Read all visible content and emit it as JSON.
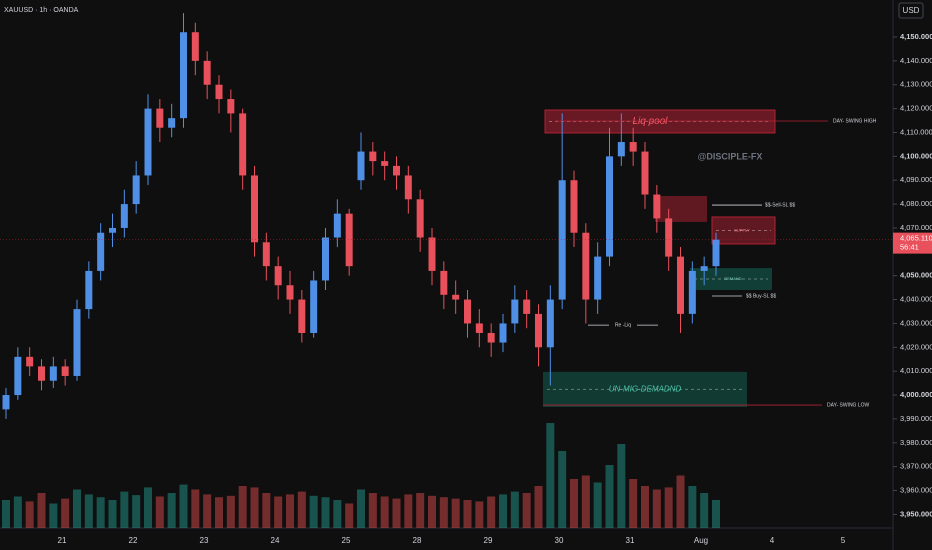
{
  "chart_data": {
    "type": "candlestick",
    "title": "XAUUSD · 1h · OANDA",
    "currency": "USD",
    "watermark": "@DISCIPLE-FX",
    "up_color": "#4f8fe6",
    "down_color": "#e8505b",
    "ylim": [
      3944.3,
      4165.5
    ],
    "yticks": [
      {
        "value": 4150,
        "label": "4,150.000"
      },
      {
        "value": 4140,
        "label": "4,140.000"
      },
      {
        "value": 4130,
        "label": "4,130.000"
      },
      {
        "value": 4120,
        "label": "4,120.000"
      },
      {
        "value": 4110,
        "label": "4,110.000"
      },
      {
        "value": 4100,
        "label": "4,100.000"
      },
      {
        "value": 4090,
        "label": "4,090.000"
      },
      {
        "value": 4080,
        "label": "4,080.000"
      },
      {
        "value": 4070,
        "label": "4,070.000"
      },
      {
        "value": 4050,
        "label": "4,050.000"
      },
      {
        "value": 4040,
        "label": "4,040.000"
      },
      {
        "value": 4030,
        "label": "4,030.000"
      },
      {
        "value": 4020,
        "label": "4,020.000"
      },
      {
        "value": 4010,
        "label": "4,010.000"
      },
      {
        "value": 4000,
        "label": "4,000.000"
      },
      {
        "value": 3990,
        "label": "3,990.000"
      },
      {
        "value": 3980,
        "label": "3,980.000"
      },
      {
        "value": 3970,
        "label": "3,970.000"
      },
      {
        "value": 3960,
        "label": "3,960.000"
      },
      {
        "value": 3950,
        "label": "3,950.000"
      }
    ],
    "x_tick_labels": [
      "21",
      "22",
      "23",
      "24",
      "25",
      "28",
      "29",
      "30",
      "31",
      "Aug",
      "4",
      "5"
    ],
    "candles": {
      "open": [
        3994,
        4000,
        4016,
        4012,
        4006,
        4012,
        4008,
        4036,
        4052,
        4068,
        4070,
        4080,
        4092,
        4120,
        4112,
        4116,
        4152,
        4140,
        4130,
        4124,
        4118,
        4092,
        4064,
        4054,
        4046,
        4040,
        4026,
        4048,
        4066,
        4076,
        4090,
        4102,
        4098,
        4096,
        4092,
        4082,
        4066,
        4052,
        4042,
        4040,
        4030,
        4026,
        4022,
        4030,
        4040,
        4034,
        4020,
        4040,
        4090,
        4068,
        4040,
        4058,
        4100,
        4106,
        4102,
        4084,
        4074,
        4058,
        4034,
        4052,
        4054
      ],
      "high": [
        4003,
        4020,
        4020,
        4015,
        4016,
        4015,
        4040,
        4056,
        4072,
        4076,
        4086,
        4098,
        4126,
        4124,
        4122,
        4160,
        4156,
        4144,
        4134,
        4128,
        4120,
        4096,
        4068,
        4058,
        4052,
        4044,
        4052,
        4070,
        4082,
        4078,
        4110,
        4106,
        4102,
        4100,
        4096,
        4086,
        4070,
        4056,
        4048,
        4044,
        4036,
        4030,
        4034,
        4046,
        4044,
        4038,
        4046,
        4118,
        4094,
        4072,
        4064,
        4112,
        4118,
        4112,
        4106,
        4088,
        4078,
        4062,
        4056,
        4058,
        4068
      ],
      "low": [
        3990,
        3998,
        4008,
        4002,
        4003,
        4004,
        4006,
        4032,
        4048,
        4062,
        4066,
        4076,
        4088,
        4106,
        4108,
        4112,
        4134,
        4124,
        4118,
        4110,
        4086,
        4058,
        4048,
        4040,
        4034,
        4022,
        4024,
        4044,
        4062,
        4050,
        4086,
        4092,
        4090,
        4086,
        4076,
        4060,
        4046,
        4036,
        4034,
        4024,
        4020,
        4016,
        4018,
        4026,
        4028,
        4012,
        4004,
        4036,
        4062,
        4030,
        4034,
        4054,
        4096,
        4096,
        4078,
        4068,
        4052,
        4026,
        4030,
        4046,
        4050
      ],
      "close": [
        4000,
        4016,
        4012,
        4006,
        4012,
        4008,
        4036,
        4052,
        4068,
        4070,
        4080,
        4092,
        4120,
        4112,
        4116,
        4152,
        4140,
        4130,
        4124,
        4118,
        4092,
        4064,
        4054,
        4046,
        4040,
        4026,
        4048,
        4066,
        4076,
        4054,
        4102,
        4098,
        4096,
        4092,
        4082,
        4066,
        4052,
        4042,
        4040,
        4030,
        4026,
        4022,
        4030,
        4040,
        4034,
        4020,
        4040,
        4090,
        4068,
        4040,
        4058,
        4100,
        4106,
        4102,
        4084,
        4074,
        4058,
        4034,
        4052,
        4054,
        4065.11
      ],
      "volume": [
        40,
        45,
        38,
        50,
        35,
        42,
        55,
        48,
        44,
        40,
        52,
        47,
        58,
        45,
        50,
        62,
        55,
        48,
        44,
        46,
        60,
        58,
        50,
        45,
        48,
        52,
        46,
        44,
        40,
        35,
        55,
        50,
        45,
        42,
        48,
        50,
        46,
        44,
        42,
        40,
        38,
        45,
        48,
        52,
        50,
        60,
        150,
        110,
        70,
        75,
        65,
        90,
        120,
        70,
        60,
        55,
        58,
        75,
        60,
        50,
        40
      ]
    },
    "last_price": 4065.11,
    "last_price_label": "4,065.110",
    "countdown": "56:41",
    "zones": [
      {
        "label": "Liq pool",
        "top": 4119.4,
        "bottom": 4109.8
      },
      {
        "top": 4083.4,
        "bottom": 4072.5
      },
      {
        "label": "SUPPLY",
        "top": 4074.6,
        "bottom": 4063.3
      },
      {
        "label": "DEMAND",
        "top": 4053.2,
        "bottom": 4044.0
      },
      {
        "label": "UN-MIG-DEMADND",
        "top": 4009.7,
        "bottom": 3995.0
      }
    ],
    "levels": [
      {
        "label": "DAY- SWING HIGH",
        "value": 4114.8
      },
      {
        "label": "$$-Sell-SL $$",
        "value": 4079.6
      },
      {
        "label": "$$ Buy-SL $$",
        "value": 4041.5
      },
      {
        "label": "Re -Liq",
        "value": 4029.3
      },
      {
        "label": "DAY- SWING LOW",
        "value": 3995.8
      }
    ]
  }
}
